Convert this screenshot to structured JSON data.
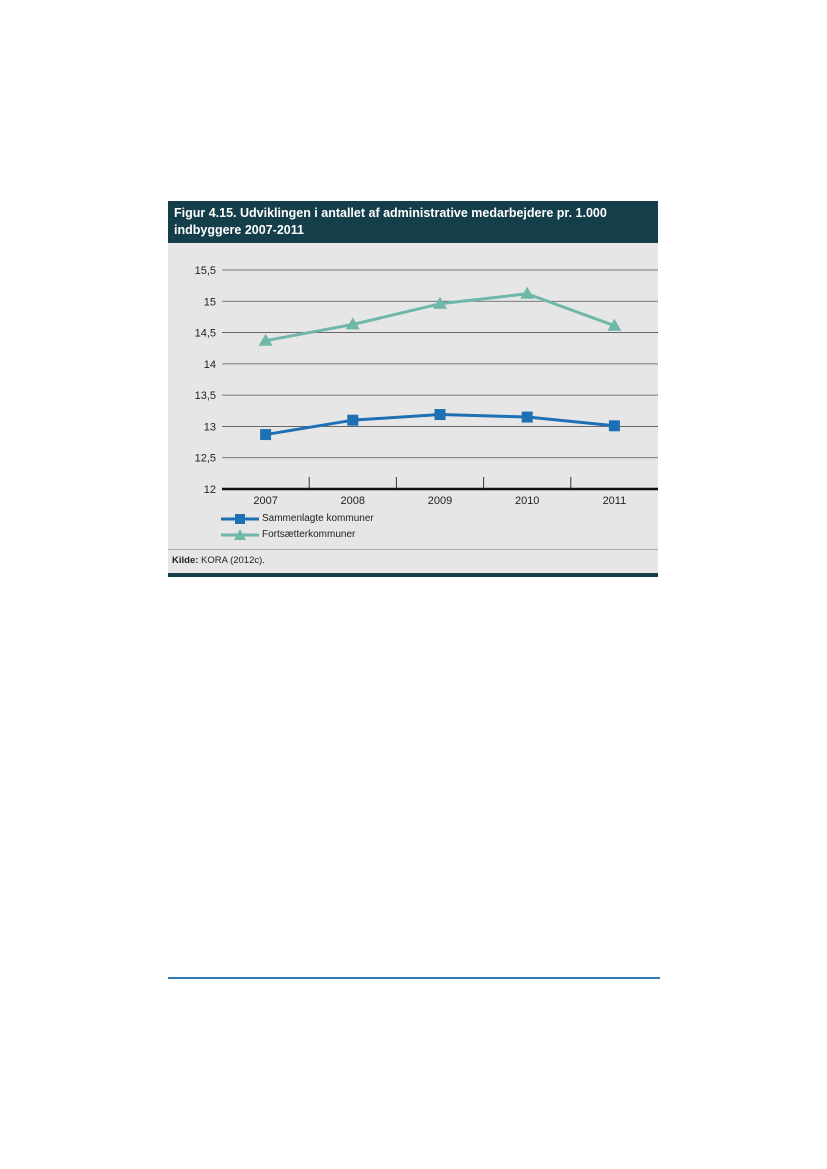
{
  "figure": {
    "title": "Figur 4.15. Udviklingen i antallet af administrative medarbejdere pr. 1.000 indbyggere 2007-2011",
    "source_label": "Kilde:",
    "source_text": "KORA (2012c)."
  },
  "colors": {
    "header_bg": "#133e4a",
    "panel_bg": "#e6e6e6",
    "sammenlagte": "#1f6fb5",
    "fortsaetter": "#6fb7a8"
  },
  "chart_data": {
    "type": "line",
    "title": "Figur 4.15. Udviklingen i antallet af administrative medarbejdere pr. 1.000 indbyggere 2007-2011",
    "xlabel": "",
    "ylabel": "",
    "categories": [
      "2007",
      "2008",
      "2009",
      "2010",
      "2011"
    ],
    "y_ticks": [
      "12",
      "12,5",
      "13",
      "13,5",
      "14",
      "14,5",
      "15",
      "15,5"
    ],
    "ylim": [
      12,
      15.5
    ],
    "grid": true,
    "legend_position": "bottom-left",
    "series": [
      {
        "name": "Sammenlagte kommuner",
        "marker": "square",
        "color": "#1f6fb5",
        "values": [
          12.87,
          13.1,
          13.19,
          13.15,
          13.01
        ]
      },
      {
        "name": "Fortsætterkommuner",
        "marker": "triangle",
        "color": "#6fb7a8",
        "values": [
          14.37,
          14.63,
          14.96,
          15.12,
          14.61
        ]
      }
    ]
  }
}
